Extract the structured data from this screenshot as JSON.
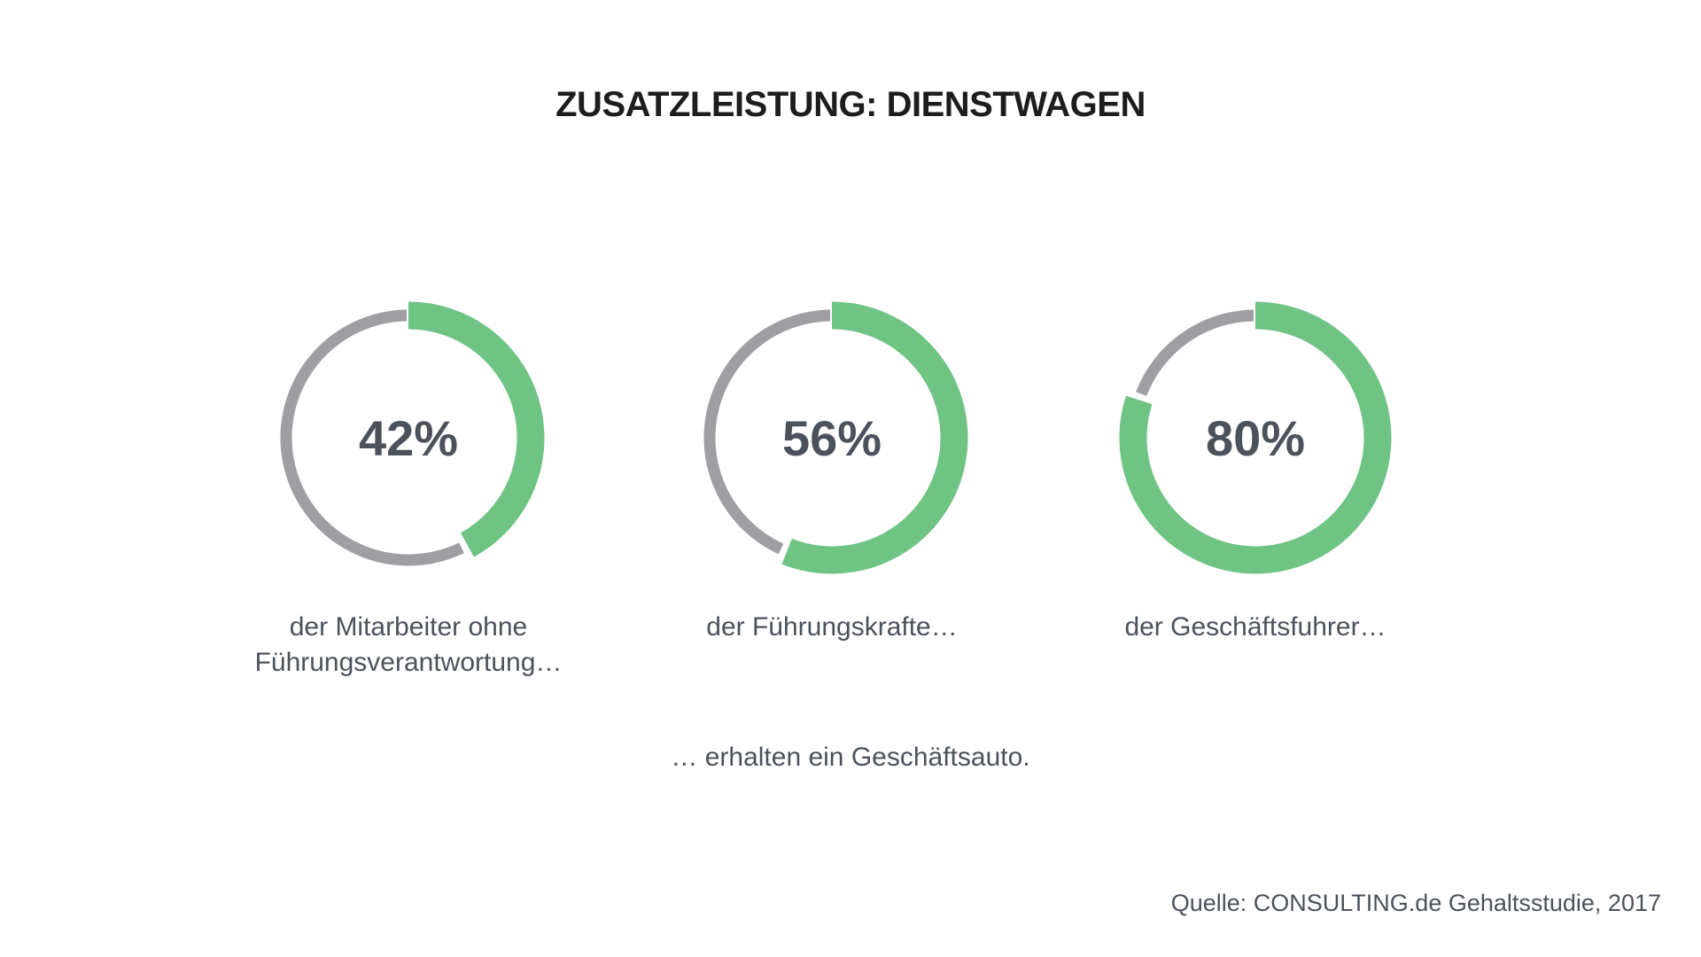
{
  "title": "ZUSATZLEISTUNG: DIENSTWAGEN",
  "colors": {
    "accent_green": "#6FC383",
    "ring_gray": "#9E9EA3",
    "text_dark": "#4C525B",
    "title_color": "#1D1D1B"
  },
  "chart_data": [
    {
      "type": "pie",
      "style": "donut",
      "value_pct": 42,
      "remainder_pct": 58,
      "center_label": "42%",
      "caption": "der  Mitarbeiter ohne\nFührungsverantwortung…",
      "start_angle_deg": 0,
      "direction": "clockwise",
      "filled_color": "#6FC383",
      "remainder_color": "#9E9EA3"
    },
    {
      "type": "pie",
      "style": "donut",
      "value_pct": 56,
      "remainder_pct": 44,
      "center_label": "56%",
      "caption": "der Führungskrafte…",
      "start_angle_deg": 0,
      "direction": "clockwise",
      "filled_color": "#6FC383",
      "remainder_color": "#9E9EA3"
    },
    {
      "type": "pie",
      "style": "donut",
      "value_pct": 80,
      "remainder_pct": 20,
      "center_label": "80%",
      "caption": "der Geschäftsfuhrer…",
      "start_angle_deg": 0,
      "direction": "clockwise",
      "filled_color": "#6FC383",
      "remainder_color": "#9E9EA3"
    }
  ],
  "footer": {
    "conclusion": "… erhalten ein Geschäftsauto.",
    "source": "Quelle: CONSULTING.de Gehaltsstudie, 2017"
  }
}
